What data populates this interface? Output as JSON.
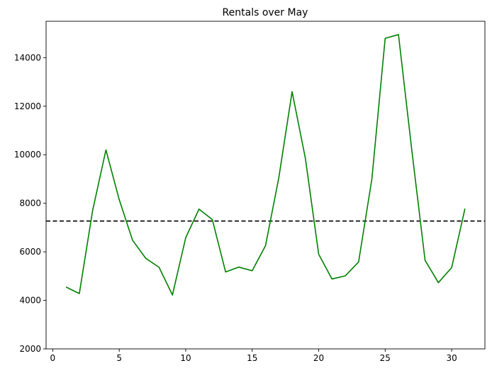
{
  "chart_data": {
    "type": "line",
    "title": "Rentals over May",
    "xlabel": "",
    "ylabel": "",
    "xlim": [
      -0.5,
      32.5
    ],
    "ylim": [
      2000,
      15500
    ],
    "x_ticks": [
      0,
      5,
      10,
      15,
      20,
      25,
      30
    ],
    "y_ticks": [
      2000,
      4000,
      6000,
      8000,
      10000,
      12000,
      14000
    ],
    "grid": false,
    "series": [
      {
        "color": "#008000",
        "x": [
          1,
          2,
          3,
          4,
          5,
          6,
          7,
          8,
          9,
          10,
          11,
          12,
          13,
          14,
          15,
          16,
          17,
          18,
          19,
          20,
          21,
          22,
          23,
          24,
          25,
          26,
          27,
          28,
          29,
          30,
          31
        ],
        "y": [
          4550,
          4280,
          7700,
          10200,
          8150,
          6480,
          5730,
          5360,
          4220,
          6580,
          7760,
          7330,
          5170,
          5370,
          5220,
          6250,
          9050,
          12600,
          9850,
          5900,
          4880,
          5010,
          5580,
          9000,
          14800,
          14950,
          10200,
          5650,
          4730,
          5350,
          7780
        ]
      }
    ],
    "reference_line": {
      "orientation": "horizontal",
      "y": 7270,
      "style": "dashed",
      "color": "#000000"
    }
  }
}
